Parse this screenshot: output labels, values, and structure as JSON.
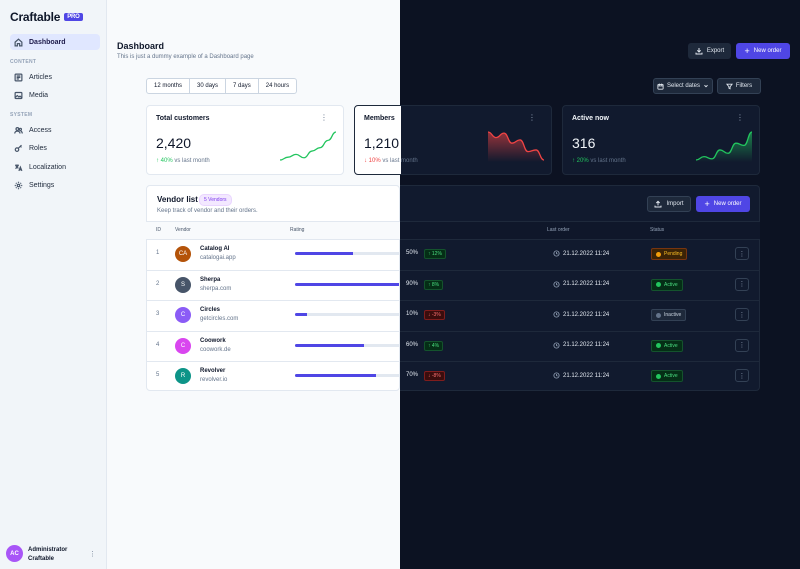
{
  "app": {
    "name": "Craftable",
    "badge": "PRO"
  },
  "sidebar": {
    "dashboard": "Dashboard",
    "content_label": "CONTENT",
    "articles": "Articles",
    "media": "Media",
    "system_label": "SYSTEM",
    "access": "Access",
    "roles": "Roles",
    "localization": "Localization",
    "settings": "Settings"
  },
  "user": {
    "initials": "AC",
    "name": "Administrator",
    "org": "Craftable",
    "menu": "⋮"
  },
  "header": {
    "title": "Dashboard",
    "subtitle": "This is just a dummy example of a Dashboard page",
    "export": "Export",
    "new_order": "New order"
  },
  "filters": {
    "tabs": [
      "12 months",
      "30 days",
      "7 days",
      "24 hours"
    ],
    "select_dates": "Select dates",
    "filters": "Filters"
  },
  "stats": [
    {
      "title": "Total customers",
      "value": "2,420",
      "delta": "40%",
      "delta_text": "vs last month",
      "direction": "up",
      "trend": [
        2,
        2.5,
        3,
        2.4,
        3.6,
        4.2,
        5.5,
        7
      ]
    },
    {
      "title": "Members",
      "value": "1,210",
      "delta": "10%",
      "delta_text": "vs last month",
      "direction": "down",
      "trend": [
        7,
        6,
        6.8,
        5,
        5.6,
        3.5,
        3.8,
        2
      ]
    },
    {
      "title": "Active now",
      "value": "316",
      "delta": "20%",
      "delta_text": "vs last month",
      "direction": "up",
      "trend": [
        2,
        2.6,
        2.2,
        3.8,
        3.2,
        5,
        4.6,
        7
      ]
    }
  ],
  "vendors": {
    "title": "Vendor list",
    "badge": "5 Vendors",
    "subtitle": "Keep track of vendor and their orders.",
    "import": "Import",
    "new_order": "New order",
    "columns": {
      "id": "ID",
      "vendor": "Vendor",
      "rating": "Rating",
      "last_order": "Last order",
      "status": "Status"
    },
    "rows": [
      {
        "id": "1",
        "initials": "CA",
        "color": "#b45309",
        "name": "Catalog AI",
        "url": "catalogai.app",
        "rating": 50,
        "rating_label": "50%",
        "change": "12%",
        "change_dir": "up",
        "last_order": "21.12.2022 11:24",
        "status": "Pending"
      },
      {
        "id": "2",
        "initials": "S",
        "color": "#475569",
        "name": "Sherpa",
        "url": "sherpa.com",
        "rating": 90,
        "rating_label": "90%",
        "change": "8%",
        "change_dir": "up",
        "last_order": "21.12.2022 11:24",
        "status": "Active"
      },
      {
        "id": "3",
        "initials": "C",
        "color": "#8b5cf6",
        "name": "Circles",
        "url": "getcircles.com",
        "rating": 10,
        "rating_label": "10%",
        "change": "-3%",
        "change_dir": "down",
        "last_order": "21.12.2022 11:24",
        "status": "Inactive"
      },
      {
        "id": "4",
        "initials": "C",
        "color": "#d946ef",
        "name": "Coowork",
        "url": "coowork.de",
        "rating": 60,
        "rating_label": "60%",
        "change": "4%",
        "change_dir": "up",
        "last_order": "21.12.2022 11:24",
        "status": "Active"
      },
      {
        "id": "5",
        "initials": "R",
        "color": "#0d9488",
        "name": "Revolver",
        "url": "revolver.io",
        "rating": 70,
        "rating_label": "70%",
        "change": "-8%",
        "change_dir": "down",
        "last_order": "21.12.2022 11:24",
        "status": "Active"
      }
    ]
  },
  "colors": {
    "accent": "#4f46e5",
    "up": "#22c55e",
    "down": "#ef4444"
  }
}
